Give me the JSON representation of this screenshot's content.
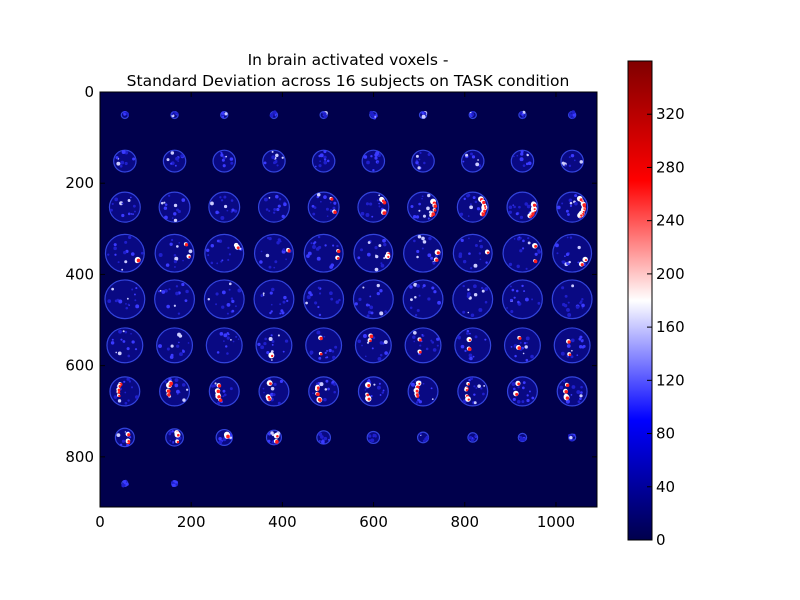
{
  "chart_data": {
    "type": "heatmap",
    "title_lines": [
      "In brain activated voxels -",
      "Standard Deviation across 16 subjects on TASK condition"
    ],
    "xlabel": "",
    "ylabel": "",
    "xlim": [
      0,
      1090
    ],
    "ylim": [
      910,
      0
    ],
    "x_ticks": [
      0,
      200,
      400,
      600,
      800,
      1000
    ],
    "y_ticks": [
      0,
      200,
      400,
      600,
      800
    ],
    "grid": false,
    "image": {
      "description": "mosaic of axial brain slices",
      "grid_rows": 9,
      "grid_cols": 10,
      "cell_size": [
        109,
        101
      ],
      "background_value": 0
    },
    "colorbar": {
      "colormap": "seismic",
      "range": [
        0,
        360
      ],
      "ticks": [
        0,
        40,
        80,
        120,
        160,
        200,
        240,
        280,
        320
      ],
      "colors": {
        "low": "#00004c",
        "mid_low": "#0000ff",
        "mid": "#ffffff",
        "mid_high": "#ff0000",
        "high": "#800000"
      }
    }
  }
}
